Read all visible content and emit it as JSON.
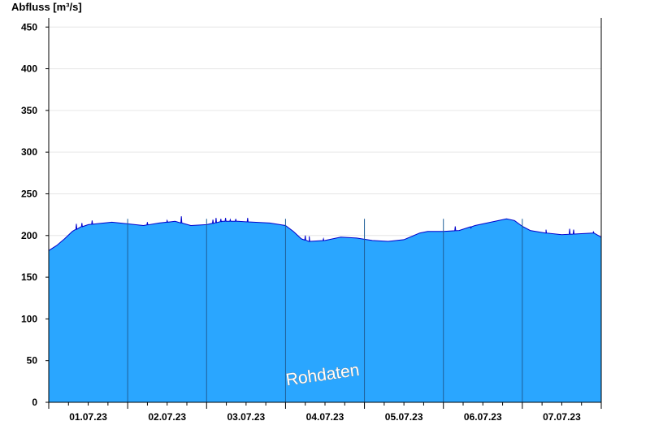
{
  "chart_data": {
    "type": "area",
    "ylabel": "Abfluss [m³/s]",
    "xlabel": "",
    "ylim": [
      0,
      460
    ],
    "yticks": [
      0,
      50,
      100,
      150,
      200,
      250,
      300,
      350,
      400,
      450
    ],
    "ytick_labels": [
      "0",
      "50",
      "100",
      "150",
      "200",
      "250",
      "300",
      "350",
      "400",
      "450"
    ],
    "xlim": [
      0,
      7
    ],
    "day_labels": [
      "01.07.23",
      "02.07.23",
      "03.07.23",
      "04.07.23",
      "05.07.23",
      "06.07.23",
      "07.07.23"
    ],
    "grid": true,
    "fill_color": "#2aa6ff",
    "line_color": "#0000cc",
    "grid_color": "#e6e6e6",
    "watermark": "Rohdaten",
    "series": [
      {
        "x": [
          0,
          0.1,
          0.2,
          0.3,
          0.4,
          0.5,
          0.6,
          0.7,
          0.8,
          1.0,
          1.2,
          1.4,
          1.6,
          1.8,
          2.0,
          2.2,
          2.4,
          2.6,
          2.8,
          3.0,
          3.1,
          3.2,
          3.3,
          3.5,
          3.7,
          3.9,
          4.1,
          4.3,
          4.5,
          4.7,
          4.8,
          5.0,
          5.2,
          5.4,
          5.6,
          5.8,
          5.9,
          6.0,
          6.1,
          6.3,
          6.5,
          6.7,
          6.9,
          7.0
        ],
        "y": [
          182,
          188,
          196,
          205,
          210,
          213,
          214,
          215,
          216,
          214,
          212,
          215,
          217,
          212,
          213,
          217,
          217,
          216,
          215,
          212,
          205,
          196,
          193,
          194,
          198,
          197,
          194,
          193,
          195,
          203,
          205,
          205,
          206,
          212,
          216,
          220,
          218,
          211,
          206,
          203,
          201,
          202,
          203,
          198
        ],
        "spikes": [
          {
            "x": 0.35,
            "y": 214
          },
          {
            "x": 0.42,
            "y": 215
          },
          {
            "x": 0.55,
            "y": 218
          },
          {
            "x": 1.25,
            "y": 216
          },
          {
            "x": 1.5,
            "y": 218
          },
          {
            "x": 1.68,
            "y": 223
          },
          {
            "x": 2.08,
            "y": 219
          },
          {
            "x": 2.12,
            "y": 221
          },
          {
            "x": 2.18,
            "y": 220
          },
          {
            "x": 2.24,
            "y": 221
          },
          {
            "x": 2.3,
            "y": 219
          },
          {
            "x": 2.37,
            "y": 220
          },
          {
            "x": 2.52,
            "y": 221
          },
          {
            "x": 3.25,
            "y": 200
          },
          {
            "x": 3.3,
            "y": 199
          },
          {
            "x": 3.48,
            "y": 196
          },
          {
            "x": 5.15,
            "y": 211
          },
          {
            "x": 5.35,
            "y": 209
          },
          {
            "x": 6.3,
            "y": 207
          },
          {
            "x": 6.6,
            "y": 208
          },
          {
            "x": 6.65,
            "y": 207
          },
          {
            "x": 6.9,
            "y": 205
          }
        ]
      }
    ]
  }
}
